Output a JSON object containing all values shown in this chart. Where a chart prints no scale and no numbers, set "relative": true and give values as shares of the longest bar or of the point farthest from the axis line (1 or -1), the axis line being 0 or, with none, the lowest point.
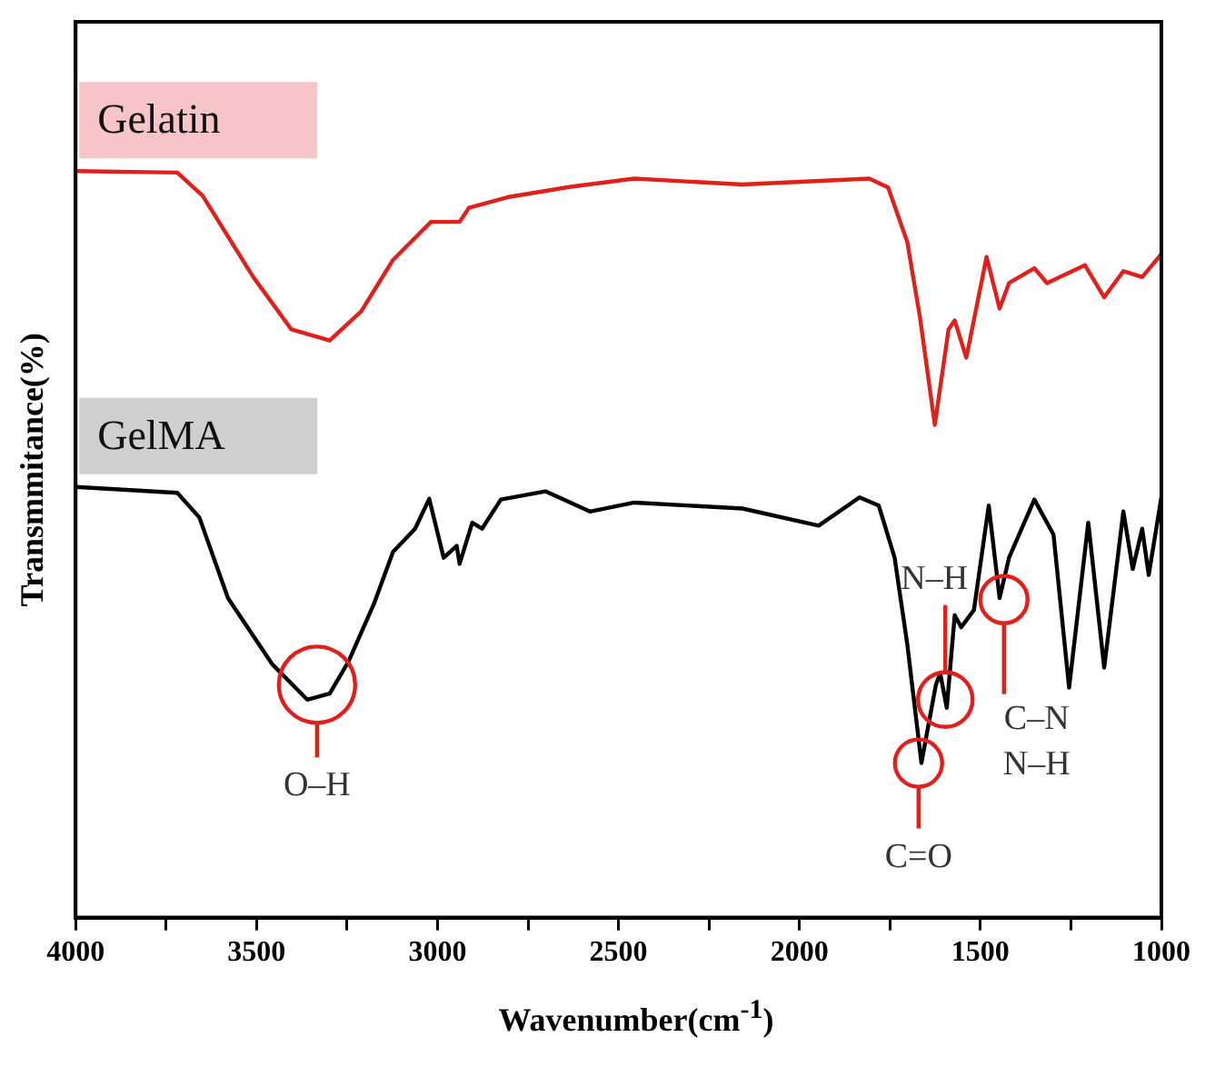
{
  "chart_data": {
    "type": "line",
    "relative": true,
    "xlabel": "Wavenumber(cm$^{-1}$)",
    "ylabel": "Transmmitance(%)",
    "xlim": [
      4000,
      1000
    ],
    "xticks": [
      4000,
      {
        "value": 3750,
        "label": null
      },
      3500,
      {
        "value": 3250,
        "label": null
      },
      3000,
      {
        "value": 2750,
        "label": null
      },
      2500,
      {
        "value": 2250,
        "label": null
      },
      2000,
      {
        "value": 1750,
        "label": null
      },
      1500,
      {
        "value": 1250,
        "label": null
      },
      1000
    ],
    "grid": false,
    "legend": false,
    "marker": "none",
    "line_style": "solid",
    "series": [
      {
        "name": "Gelatin",
        "color": "#e0201b",
        "x": [
          4000,
          3719,
          3649,
          3509,
          3404,
          3298,
          3211,
          3123,
          3018,
          2939,
          2913,
          2807,
          2632,
          2456,
          2158,
          1807,
          1755,
          1702,
          1667,
          1626,
          1588,
          1571,
          1539,
          1483,
          1447,
          1421,
          1351,
          1316,
          1211,
          1158,
          1105,
          1053,
          1000
        ],
        "values": [
          1,
          0.998,
          0.967,
          0.858,
          0.788,
          0.773,
          0.812,
          0.881,
          0.932,
          0.932,
          0.951,
          0.965,
          0.979,
          0.99,
          0.982,
          0.99,
          0.978,
          0.905,
          0.804,
          0.66,
          0.788,
          0.8,
          0.75,
          0.885,
          0.816,
          0.85,
          0.87,
          0.85,
          0.874,
          0.831,
          0.866,
          0.858,
          0.889
        ]
      },
      {
        "name": "GelMA",
        "color": "#000000",
        "x": [
          4000,
          3719,
          3658,
          3579,
          3456,
          3360,
          3298,
          3246,
          3176,
          3123,
          3062,
          3023,
          2983,
          2947,
          2939,
          2904,
          2877,
          2825,
          2702,
          2579,
          2456,
          2158,
          1947,
          1834,
          1781,
          1737,
          1702,
          1663,
          1623,
          1611,
          1593,
          1571,
          1553,
          1518,
          1477,
          1447,
          1421,
          1351,
          1298,
          1255,
          1202,
          1158,
          1105,
          1079,
          1053,
          1035,
          1000
        ],
        "values": [
          0.577,
          0.569,
          0.536,
          0.428,
          0.339,
          0.292,
          0.3,
          0.343,
          0.42,
          0.49,
          0.521,
          0.561,
          0.482,
          0.498,
          0.474,
          0.529,
          0.521,
          0.56,
          0.571,
          0.544,
          0.556,
          0.548,
          0.525,
          0.563,
          0.552,
          0.482,
          0.366,
          0.207,
          0.312,
          0.327,
          0.281,
          0.405,
          0.389,
          0.412,
          0.552,
          0.428,
          0.482,
          0.56,
          0.513,
          0.308,
          0.529,
          0.335,
          0.544,
          0.467,
          0.521,
          0.459,
          0.563
        ]
      }
    ],
    "annotations": [
      {
        "text": "O–H",
        "x": 3333,
        "y": 0.312
      },
      {
        "text": "C=O",
        "x": 1671,
        "y": 0.207
      },
      {
        "text": "N–H",
        "x": 1597,
        "y": 0.292
      },
      {
        "text": "C–N\nN–H",
        "x": 1435,
        "y": 0.426
      }
    ]
  }
}
